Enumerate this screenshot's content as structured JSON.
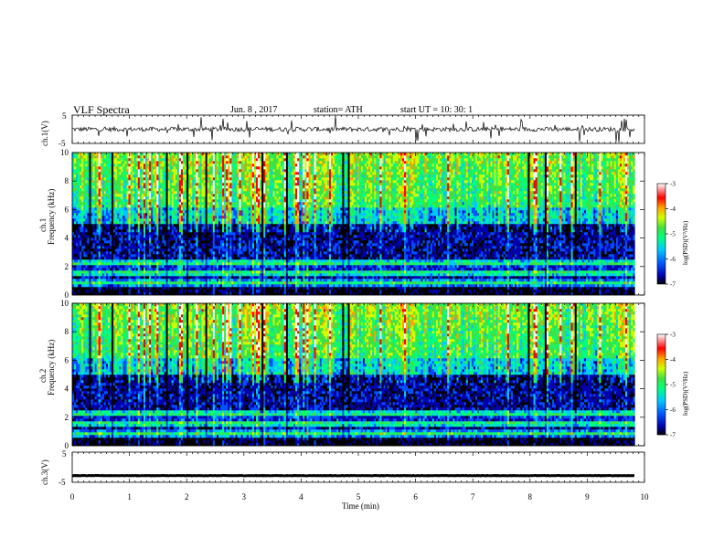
{
  "header": {
    "title": "VLF  Spectra",
    "date": "Jun. 8  , 2017",
    "station": "station= ATH",
    "start": "start  UT  =    10: 30: 1"
  },
  "chart_data": [
    {
      "type": "line",
      "panel": "ch1-waveform",
      "ylabel": "ch.1(V)",
      "ylim": [
        -5,
        5
      ],
      "yticks": [
        "5",
        "-5"
      ],
      "xlim": [
        0,
        10
      ],
      "baseline": 0.0,
      "color": "#000000"
    },
    {
      "type": "heatmap",
      "panel": "ch1-spectrogram",
      "ylabel": "ch.1\nFrequency  (kHz)",
      "ylabel_line1": "ch.1",
      "ylabel_line2": "Frequency  (kHz)",
      "ylim": [
        0,
        10
      ],
      "yticks": [
        "0",
        "2",
        "4",
        "6",
        "8",
        "10"
      ],
      "xlim": [
        0,
        9.83
      ],
      "colorbar": {
        "label": "log(PSD)(V²/Hz)",
        "range": [
          -7,
          -3
        ],
        "ticks": [
          "-3",
          "-4",
          "-5",
          "-6",
          "-7"
        ],
        "colors": [
          "#000000",
          "#0000aa",
          "#0050ff",
          "#00c8ff",
          "#00ff80",
          "#40e040",
          "#d0ff00",
          "#ffa000",
          "#ff0000",
          "#ffffff"
        ]
      }
    },
    {
      "type": "heatmap",
      "panel": "ch2-spectrogram",
      "ylabel": "ch.2\nFrequency  (kHz)",
      "ylabel_line1": "ch.2",
      "ylabel_line2": "Frequency  (kHz)",
      "ylim": [
        0,
        10
      ],
      "yticks": [
        "0",
        "2",
        "4",
        "6",
        "8",
        "10"
      ],
      "xlim": [
        0,
        9.83
      ],
      "colorbar": {
        "label": "log(PSD)(V²/Hz)",
        "range": [
          -7,
          -3
        ],
        "ticks": [
          "-3",
          "-4",
          "-5",
          "-6",
          "-7"
        ],
        "colors": [
          "#000000",
          "#0000aa",
          "#0050ff",
          "#00c8ff",
          "#00ff80",
          "#40e040",
          "#d0ff00",
          "#ffa000",
          "#ff0000",
          "#ffffff"
        ]
      }
    },
    {
      "type": "line",
      "panel": "ch3-waveform",
      "ylabel": "ch.3(V)",
      "ylim": [
        -5,
        5
      ],
      "yticks": [
        "5",
        "-5"
      ],
      "xlim": [
        0,
        10
      ],
      "baseline": -2.8,
      "color": "#000000"
    }
  ],
  "xaxis": {
    "label": "Time  (min)",
    "ticks": [
      "0",
      "1",
      "2",
      "3",
      "4",
      "5",
      "6",
      "7",
      "8",
      "9",
      "10"
    ],
    "range": [
      0,
      10
    ]
  }
}
